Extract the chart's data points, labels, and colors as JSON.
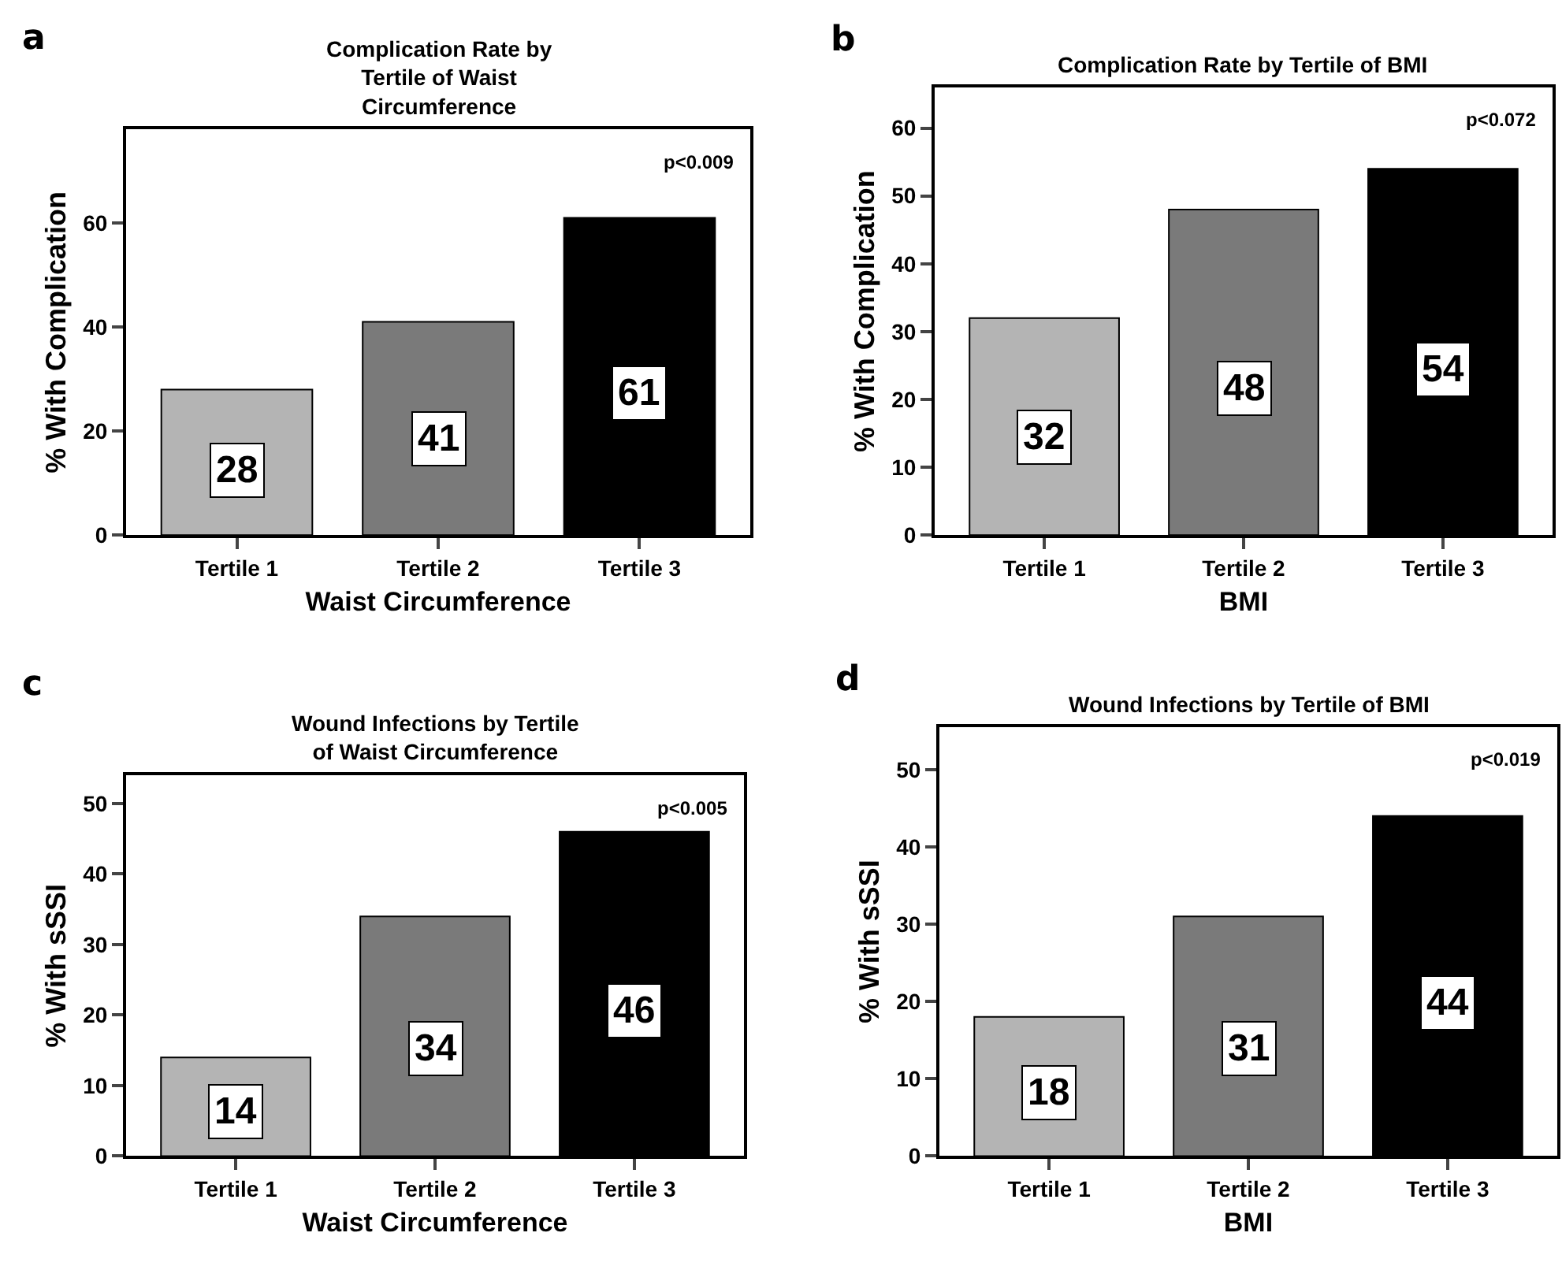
{
  "chart_data": [
    {
      "type": "bar",
      "title": "Complication Rate by Tertile of Waist Circumference",
      "xlabel": "Waist Circumference",
      "ylabel": "% With Complication",
      "categories": [
        "Tertile 1",
        "Tertile 2",
        "Tertile 3"
      ],
      "values": [
        28,
        41,
        61
      ],
      "colors": [
        "#b4b4b4",
        "#7a7a7a",
        "#000000"
      ],
      "ylim": [
        0,
        78
      ],
      "yticks": [
        0,
        20,
        40,
        60
      ],
      "data_labels": true,
      "annotations": [
        "a",
        "p<0.009"
      ]
    },
    {
      "type": "bar",
      "title": "Complication Rate by Tertile of BMI",
      "xlabel": "BMI",
      "ylabel": "% With Complication",
      "categories": [
        "Tertile 1",
        "Tertile 2",
        "Tertile 3"
      ],
      "values": [
        32,
        48,
        54
      ],
      "colors": [
        "#b4b4b4",
        "#7a7a7a",
        "#000000"
      ],
      "ylim": [
        0,
        66
      ],
      "yticks": [
        0,
        10,
        20,
        30,
        40,
        50,
        60
      ],
      "data_labels": true,
      "annotations": [
        "b",
        "p<0.072"
      ]
    },
    {
      "type": "bar",
      "title": "Wound Infections by Tertile of Waist Circumference",
      "xlabel": "Waist Circumference",
      "ylabel": "% With sSSI",
      "categories": [
        "Tertile 1",
        "Tertile 2",
        "Tertile 3"
      ],
      "values": [
        14,
        34,
        46
      ],
      "colors": [
        "#b4b4b4",
        "#7a7a7a",
        "#000000"
      ],
      "ylim": [
        0,
        54
      ],
      "yticks": [
        0,
        10,
        20,
        30,
        40,
        50
      ],
      "data_labels": true,
      "annotations": [
        "c",
        "p<0.005"
      ]
    },
    {
      "type": "bar",
      "title": "Wound Infections by Tertile of BMI",
      "xlabel": "BMI",
      "ylabel": "% With sSSI",
      "categories": [
        "Tertile 1",
        "Tertile 2",
        "Tertile 3"
      ],
      "values": [
        18,
        31,
        44
      ],
      "colors": [
        "#b4b4b4",
        "#7a7a7a",
        "#000000"
      ],
      "ylim": [
        0,
        55.5
      ],
      "yticks": [
        0,
        10,
        20,
        30,
        40,
        50
      ],
      "data_labels": true,
      "annotations": [
        "d",
        "p<0.019"
      ]
    }
  ]
}
